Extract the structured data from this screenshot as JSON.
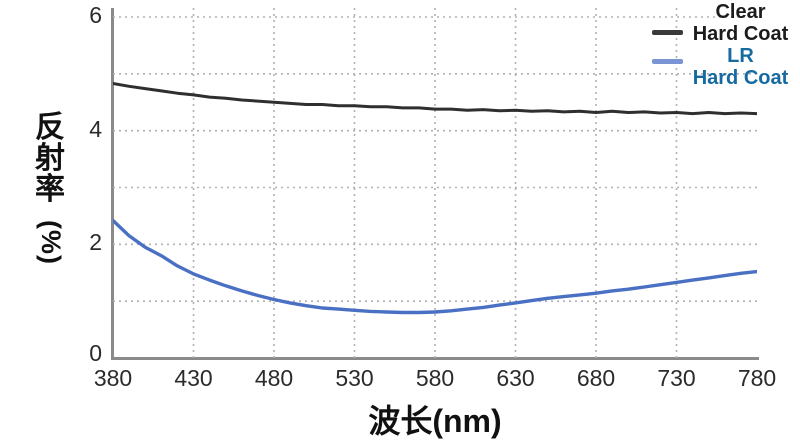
{
  "chart_data": {
    "type": "line",
    "title": "",
    "xlabel": "波长(nm)",
    "ylabel": "反射率(%)",
    "ylabel_chars": [
      "反",
      "射",
      "率"
    ],
    "ylabel_suffix": "(%)",
    "xlim": [
      380,
      780
    ],
    "ylim": [
      0,
      6
    ],
    "x_ticks": [
      380,
      430,
      480,
      530,
      580,
      630,
      680,
      730,
      780
    ],
    "y_ticks": [
      0,
      2,
      4,
      6
    ],
    "grid": {
      "style": "dotted",
      "x_values": [
        430,
        480,
        530,
        580,
        630,
        680,
        730
      ],
      "y_values": [
        1,
        2,
        3,
        4,
        5,
        6
      ]
    },
    "legend_position": "top-right",
    "x": [
      380,
      390,
      400,
      410,
      420,
      430,
      440,
      450,
      460,
      470,
      480,
      490,
      500,
      510,
      520,
      530,
      540,
      550,
      560,
      570,
      580,
      590,
      600,
      610,
      620,
      630,
      640,
      650,
      660,
      670,
      680,
      690,
      700,
      710,
      720,
      730,
      740,
      750,
      760,
      770,
      780
    ],
    "series": [
      {
        "name": "Clear Hard Coat",
        "color": "#2f2f2f",
        "width": 3,
        "values": [
          4.83,
          4.78,
          4.74,
          4.7,
          4.66,
          4.63,
          4.59,
          4.57,
          4.54,
          4.52,
          4.5,
          4.48,
          4.46,
          4.46,
          4.44,
          4.44,
          4.42,
          4.42,
          4.4,
          4.4,
          4.38,
          4.38,
          4.36,
          4.37,
          4.35,
          4.36,
          4.34,
          4.35,
          4.33,
          4.34,
          4.32,
          4.34,
          4.32,
          4.33,
          4.31,
          4.32,
          4.3,
          4.32,
          4.3,
          4.31,
          4.3
        ]
      },
      {
        "name": "LR Hard Coat",
        "color": "#4a70c4",
        "width": 3.4,
        "values": [
          2.42,
          2.15,
          1.95,
          1.8,
          1.62,
          1.48,
          1.37,
          1.27,
          1.18,
          1.1,
          1.03,
          0.97,
          0.92,
          0.88,
          0.86,
          0.84,
          0.82,
          0.81,
          0.8,
          0.8,
          0.81,
          0.83,
          0.86,
          0.89,
          0.93,
          0.97,
          1.01,
          1.05,
          1.08,
          1.11,
          1.14,
          1.18,
          1.21,
          1.25,
          1.29,
          1.33,
          1.37,
          1.41,
          1.45,
          1.49,
          1.52
        ]
      }
    ]
  },
  "legend": {
    "items": [
      {
        "line1": "Clear",
        "line2": "Hard Coat",
        "text_color": "#1c1c1c",
        "swatch_color": "#3a3a3a"
      },
      {
        "line1": "LR",
        "line2": "Hard Coat",
        "text_color": "#176a9f",
        "swatch_color": "#7b94d4"
      }
    ]
  },
  "colors": {
    "axis": "#8a8a8a",
    "grid": "#b1b1b1",
    "tick_text": "#2b2b2b",
    "background": "#ffffff"
  }
}
